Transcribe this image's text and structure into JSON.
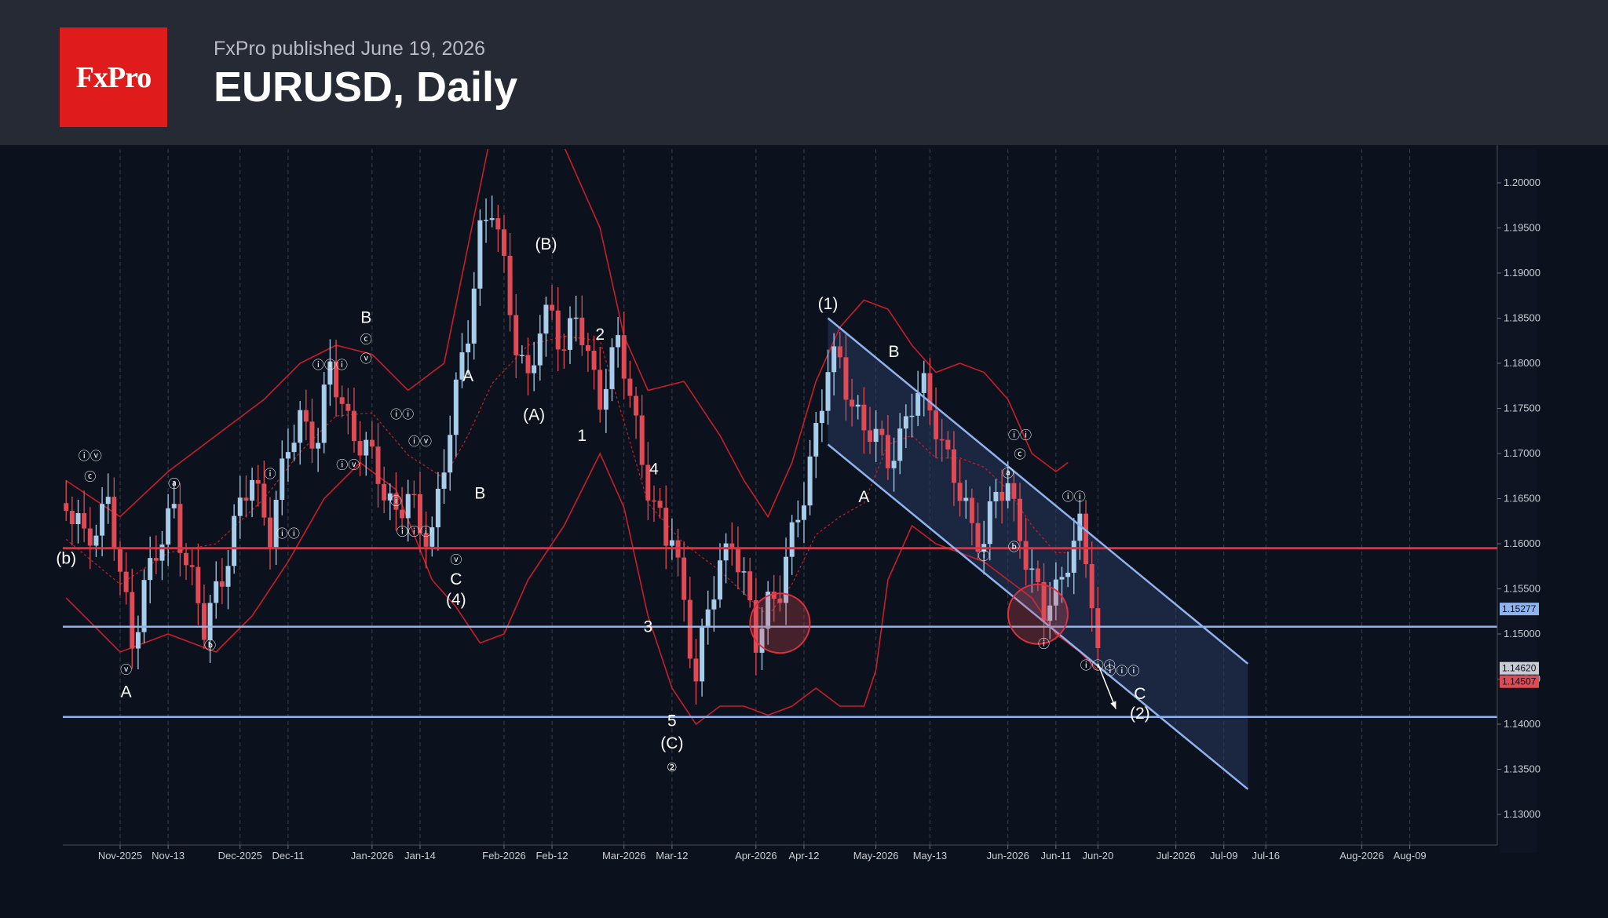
{
  "header": {
    "logo_text": "FxPro",
    "published": "FxPro published June 19, 2026",
    "title": "EURUSD, Daily"
  },
  "colors": {
    "header_bg": "#262a35",
    "logo_bg": "#e01b1b",
    "chart_bg": "#0b111d",
    "bull_candle": "#a8cdea",
    "bear_candle": "#e04a55",
    "bollinger": "#c81e28",
    "resistance_line": "#e03040",
    "support_line": "#8fb3ee",
    "channel_line": "#8fb3ee"
  },
  "chart_data": {
    "type": "candlestick",
    "symbol": "EURUSD",
    "timeframe": "Daily",
    "ylim": [
      1.126,
      1.2038
    ],
    "y_ticks": [
      "1.20000",
      "1.19500",
      "1.19000",
      "1.18500",
      "1.18000",
      "1.17500",
      "1.17000",
      "1.16500",
      "1.16000",
      "1.15500",
      "1.15000",
      "1.14500",
      "1.14000",
      "1.13500",
      "1.13000"
    ],
    "x_ticks": [
      {
        "label": "Nov-2025",
        "day": 0
      },
      {
        "label": "Nov-13",
        "day": 8
      },
      {
        "label": "Dec-2025",
        "day": 20
      },
      {
        "label": "Dec-11",
        "day": 28
      },
      {
        "label": "Jan-2026",
        "day": 42
      },
      {
        "label": "Jan-14",
        "day": 50
      },
      {
        "label": "Feb-2026",
        "day": 64
      },
      {
        "label": "Feb-12",
        "day": 72
      },
      {
        "label": "Mar-2026",
        "day": 84
      },
      {
        "label": "Mar-12",
        "day": 92
      },
      {
        "label": "Apr-2026",
        "day": 106
      },
      {
        "label": "Apr-12",
        "day": 114
      },
      {
        "label": "May-2026",
        "day": 126
      },
      {
        "label": "May-13",
        "day": 135
      },
      {
        "label": "Jun-2026",
        "day": 148
      },
      {
        "label": "Jun-11",
        "day": 156
      },
      {
        "label": "Jun-20",
        "day": 163
      },
      {
        "label": "Jul-2026",
        "day": 176
      },
      {
        "label": "Jul-09",
        "day": 184
      },
      {
        "label": "Jul-16",
        "day": 191
      },
      {
        "label": "Aug-2026",
        "day": 207
      },
      {
        "label": "Aug-09",
        "day": 215
      }
    ],
    "close_path": [
      [
        -9,
        1.1645
      ],
      [
        -6,
        1.16
      ],
      [
        -2,
        1.165
      ],
      [
        0,
        1.156
      ],
      [
        2,
        1.149
      ],
      [
        4,
        1.156
      ],
      [
        7,
        1.16
      ],
      [
        9,
        1.164
      ],
      [
        12,
        1.156
      ],
      [
        14,
        1.15
      ],
      [
        17,
        1.157
      ],
      [
        19,
        1.162
      ],
      [
        22,
        1.167
      ],
      [
        25,
        1.162
      ],
      [
        28,
        1.17
      ],
      [
        30,
        1.174
      ],
      [
        33,
        1.172
      ],
      [
        35,
        1.179
      ],
      [
        38,
        1.174
      ],
      [
        41,
        1.17
      ],
      [
        44,
        1.166
      ],
      [
        46,
        1.164
      ],
      [
        48,
        1.165
      ],
      [
        50,
        1.161
      ],
      [
        52,
        1.162
      ],
      [
        54,
        1.169
      ],
      [
        56,
        1.176
      ],
      [
        58,
        1.184
      ],
      [
        60,
        1.195
      ],
      [
        62,
        1.197
      ],
      [
        64,
        1.19
      ],
      [
        66,
        1.183
      ],
      [
        68,
        1.178
      ],
      [
        70,
        1.183
      ],
      [
        72,
        1.186
      ],
      [
        74,
        1.182
      ],
      [
        76,
        1.185
      ],
      [
        78,
        1.18
      ],
      [
        80,
        1.177
      ],
      [
        83,
        1.182
      ],
      [
        85,
        1.176
      ],
      [
        87,
        1.17
      ],
      [
        89,
        1.164
      ],
      [
        91,
        1.16
      ],
      [
        92,
        1.161
      ],
      [
        94,
        1.154
      ],
      [
        96,
        1.145
      ],
      [
        98,
        1.152
      ],
      [
        100,
        1.158
      ],
      [
        102,
        1.161
      ],
      [
        104,
        1.155
      ],
      [
        106,
        1.149
      ],
      [
        108,
        1.154
      ],
      [
        110,
        1.155
      ],
      [
        112,
        1.16
      ],
      [
        114,
        1.166
      ],
      [
        116,
        1.173
      ],
      [
        118,
        1.179
      ],
      [
        120,
        1.18
      ],
      [
        122,
        1.176
      ],
      [
        124,
        1.173
      ],
      [
        126,
        1.171
      ],
      [
        128,
        1.17
      ],
      [
        130,
        1.172
      ],
      [
        132,
        1.175
      ],
      [
        134,
        1.177
      ],
      [
        136,
        1.174
      ],
      [
        138,
        1.169
      ],
      [
        140,
        1.165
      ],
      [
        142,
        1.162
      ],
      [
        144,
        1.161
      ],
      [
        146,
        1.165
      ],
      [
        148,
        1.166
      ],
      [
        150,
        1.162
      ],
      [
        152,
        1.156
      ],
      [
        154,
        1.152
      ],
      [
        156,
        1.155
      ],
      [
        158,
        1.159
      ],
      [
        160,
        1.161
      ],
      [
        162,
        1.154
      ],
      [
        163,
        1.148
      ]
    ],
    "bollinger_upper": [
      [
        -9,
        1.167
      ],
      [
        0,
        1.163
      ],
      [
        8,
        1.168
      ],
      [
        16,
        1.172
      ],
      [
        24,
        1.176
      ],
      [
        30,
        1.18
      ],
      [
        36,
        1.182
      ],
      [
        42,
        1.181
      ],
      [
        48,
        1.177
      ],
      [
        54,
        1.18
      ],
      [
        58,
        1.193
      ],
      [
        62,
        1.206
      ],
      [
        68,
        1.208
      ],
      [
        74,
        1.204
      ],
      [
        80,
        1.195
      ],
      [
        84,
        1.183
      ],
      [
        88,
        1.177
      ],
      [
        94,
        1.178
      ],
      [
        100,
        1.172
      ],
      [
        104,
        1.167
      ],
      [
        108,
        1.163
      ],
      [
        112,
        1.169
      ],
      [
        116,
        1.178
      ],
      [
        120,
        1.184
      ],
      [
        124,
        1.187
      ],
      [
        128,
        1.186
      ],
      [
        132,
        1.182
      ],
      [
        136,
        1.179
      ],
      [
        140,
        1.18
      ],
      [
        144,
        1.179
      ],
      [
        148,
        1.176
      ],
      [
        152,
        1.17
      ],
      [
        156,
        1.168
      ],
      [
        158,
        1.169
      ]
    ],
    "bollinger_lower": [
      [
        -9,
        1.154
      ],
      [
        0,
        1.148
      ],
      [
        8,
        1.15
      ],
      [
        16,
        1.148
      ],
      [
        22,
        1.152
      ],
      [
        28,
        1.158
      ],
      [
        34,
        1.165
      ],
      [
        40,
        1.169
      ],
      [
        46,
        1.166
      ],
      [
        52,
        1.156
      ],
      [
        56,
        1.153
      ],
      [
        60,
        1.149
      ],
      [
        64,
        1.15
      ],
      [
        68,
        1.156
      ],
      [
        74,
        1.162
      ],
      [
        80,
        1.17
      ],
      [
        84,
        1.164
      ],
      [
        88,
        1.152
      ],
      [
        92,
        1.144
      ],
      [
        96,
        1.14
      ],
      [
        100,
        1.142
      ],
      [
        104,
        1.142
      ],
      [
        108,
        1.141
      ],
      [
        112,
        1.142
      ],
      [
        116,
        1.144
      ],
      [
        120,
        1.142
      ],
      [
        124,
        1.142
      ],
      [
        126,
        1.146
      ],
      [
        128,
        1.156
      ],
      [
        132,
        1.162
      ],
      [
        136,
        1.16
      ],
      [
        140,
        1.159
      ],
      [
        144,
        1.158
      ],
      [
        148,
        1.156
      ],
      [
        152,
        1.154
      ],
      [
        156,
        1.15
      ],
      [
        160,
        1.148
      ],
      [
        163,
        1.146
      ]
    ],
    "horizontal_levels": [
      {
        "price": 1.1595,
        "kind": "resistance"
      },
      {
        "price": 1.1508,
        "kind": "support"
      },
      {
        "price": 1.1408,
        "kind": "support"
      }
    ],
    "channel": {
      "upper": [
        [
          118,
          1.185
        ],
        [
          188,
          1.1467
        ]
      ],
      "lower": [
        [
          118,
          1.171
        ],
        [
          188,
          1.1328
        ]
      ]
    },
    "highlight_circles": [
      {
        "day": 110,
        "price": 1.1512
      },
      {
        "day": 153,
        "price": 1.1522
      }
    ],
    "price_labels": [
      {
        "price": 1.15277,
        "text": "1.15277",
        "color": "#8fb3ee"
      },
      {
        "price": 1.1462,
        "text": "1.14620",
        "color": "#c8cbd2"
      },
      {
        "price": 1.14507,
        "text": "1.14507",
        "color": "#e04a55"
      }
    ],
    "wave_labels": [
      {
        "text": "(b)",
        "day": -9,
        "price": 1.1578
      },
      {
        "text": "ⓘⓥ",
        "day": -5,
        "price": 1.1693
      },
      {
        "text": "ⓒ",
        "day": -5,
        "price": 1.167
      },
      {
        "text": "ⓥ",
        "day": 1,
        "price": 1.1456
      },
      {
        "text": "A",
        "day": 1,
        "price": 1.143
      },
      {
        "text": "ⓐ",
        "day": 9,
        "price": 1.1662
      },
      {
        "text": "ⓑ",
        "day": 15,
        "price": 1.1483
      },
      {
        "text": "ⓘ",
        "day": 25,
        "price": 1.1673
      },
      {
        "text": "ⓘⓘ",
        "day": 28,
        "price": 1.1607
      },
      {
        "text": "ⓘⓘⓘ",
        "day": 35,
        "price": 1.1794
      },
      {
        "text": "ⓘⓥ",
        "day": 38,
        "price": 1.1683
      },
      {
        "text": "B",
        "day": 41,
        "price": 1.1845
      },
      {
        "text": "ⓒ",
        "day": 41,
        "price": 1.1822
      },
      {
        "text": "ⓥ",
        "day": 41,
        "price": 1.1801
      },
      {
        "text": "ⓘⓘ",
        "day": 47,
        "price": 1.1739
      },
      {
        "text": "ⓘ",
        "day": 46,
        "price": 1.1643
      },
      {
        "text": "ⓘⓥ",
        "day": 50,
        "price": 1.1709
      },
      {
        "text": "ⓘⓘⓘ",
        "day": 49,
        "price": 1.1609
      },
      {
        "text": "ⓥ",
        "day": 56,
        "price": 1.1578
      },
      {
        "text": "C",
        "day": 56,
        "price": 1.1555
      },
      {
        "text": "(4)",
        "day": 56,
        "price": 1.1532
      },
      {
        "text": "A",
        "day": 58,
        "price": 1.178
      },
      {
        "text": "B",
        "day": 60,
        "price": 1.165
      },
      {
        "text": "(B)",
        "day": 71,
        "price": 1.1926
      },
      {
        "text": "(A)",
        "day": 69,
        "price": 1.1737
      },
      {
        "text": "1",
        "day": 77,
        "price": 1.1714
      },
      {
        "text": "2",
        "day": 80,
        "price": 1.1826
      },
      {
        "text": "4",
        "day": 89,
        "price": 1.1677
      },
      {
        "text": "3",
        "day": 88,
        "price": 1.1502
      },
      {
        "text": "5",
        "day": 92,
        "price": 1.1398
      },
      {
        "text": "(C)",
        "day": 92,
        "price": 1.1373
      },
      {
        "text": "②",
        "day": 92,
        "price": 1.1348
      },
      {
        "text": "(1)",
        "day": 118,
        "price": 1.186
      },
      {
        "text": "B",
        "day": 129,
        "price": 1.1807
      },
      {
        "text": "A",
        "day": 124,
        "price": 1.1646
      },
      {
        "text": "ⓘⓘ",
        "day": 150,
        "price": 1.1716
      },
      {
        "text": "ⓒ",
        "day": 150,
        "price": 1.1695
      },
      {
        "text": "ⓐ",
        "day": 148,
        "price": 1.1674
      },
      {
        "text": "ⓑ",
        "day": 149,
        "price": 1.1592
      },
      {
        "text": "ⓘ",
        "day": 144,
        "price": 1.1582
      },
      {
        "text": "ⓘ",
        "day": 154,
        "price": 1.1485
      },
      {
        "text": "ⓘⓘ",
        "day": 159,
        "price": 1.1648
      },
      {
        "text": "ⓘⓘⓘ",
        "day": 163,
        "price": 1.1461
      },
      {
        "text": "ⓘⓘⓘ",
        "day": 167,
        "price": 1.1455
      },
      {
        "text": "C",
        "day": 170,
        "price": 1.1428
      },
      {
        "text": "(2)",
        "day": 170,
        "price": 1.1406
      }
    ],
    "forecast_arrow": {
      "from": [
        163,
        1.1467
      ],
      "to": [
        166,
        1.1417
      ]
    }
  }
}
